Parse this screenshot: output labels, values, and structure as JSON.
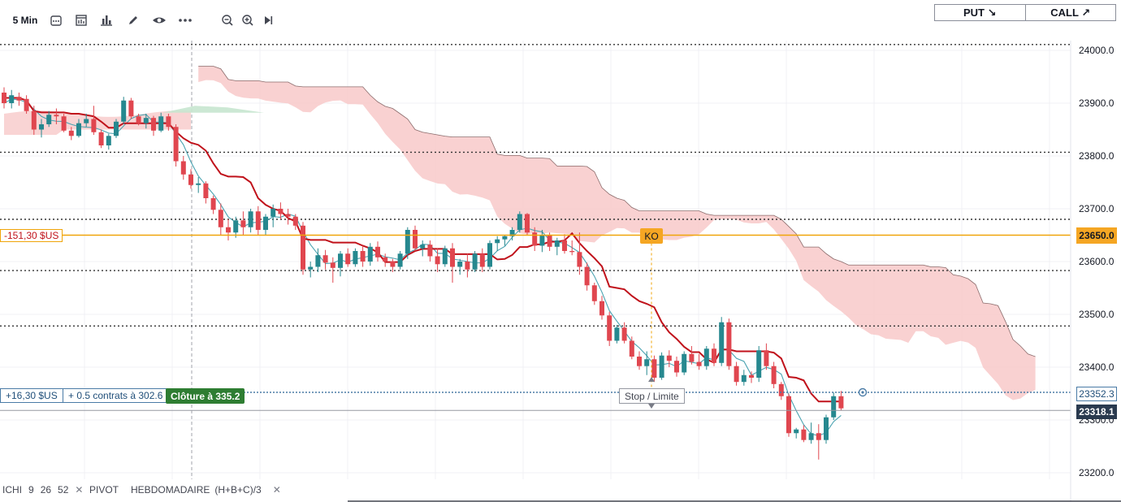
{
  "toolbar": {
    "interval": "5 Min",
    "icons": [
      "candle-type-icon",
      "indicators-icon",
      "bar-chart-icon",
      "draw-pencil-icon",
      "eye-icon",
      "more-icon",
      "zoom-out-icon",
      "zoom-in-icon",
      "play-forward-icon"
    ],
    "put_label": "PUT ↘",
    "call_label": "CALL ↗"
  },
  "position": {
    "pnl_label": "+16,30 $US",
    "contracts_label": "+ 0.5 contrats à 302.6",
    "close_label": "Clôture à 335.2",
    "stop_label": "Stop / Limite"
  },
  "ko": {
    "pnl_label": "-151,30 $US",
    "badge": "KO",
    "price_label": "23650.0"
  },
  "price_tags": {
    "position_price": "23352.3",
    "current_price": "23318.1"
  },
  "legend": {
    "ichi": {
      "name": "ICHI",
      "p1": "9",
      "p2": "26",
      "p3": "52"
    },
    "pivot": {
      "name": "PIVOT",
      "p1": "HEBDOMADAIRE",
      "p2": "(H+B+C)/3"
    }
  },
  "colors": {
    "up": "#26888f",
    "down": "#e0464f",
    "kijun": "#c0121b",
    "tenkan": "#4aa3b1",
    "cloud_bear": "#f8c9c9",
    "cloud_bull": "#c6e6cf",
    "ko_line": "#f0a50a",
    "pivot_line": "#333333"
  },
  "chart_data": {
    "type": "candlestick",
    "y_axis": {
      "min": 23200,
      "max": 24000,
      "ticks": [
        24000,
        23900,
        23800,
        23700,
        23600,
        23500,
        23400,
        23300,
        23200
      ],
      "tick_labels": [
        "24000.0",
        "23900.0",
        "23800.0",
        "23700.0",
        "23600.0",
        "23500.0",
        "23400.0",
        "23300.0",
        "23200.0"
      ]
    },
    "pivot_levels": [
      24011,
      23807,
      23680,
      23583,
      23478
    ],
    "ko_level": 23650,
    "position_level": 23352.3,
    "current_price": 23318.1,
    "candles": [
      [
        23920,
        23930,
        23890,
        23900
      ],
      [
        23900,
        23925,
        23890,
        23915
      ],
      [
        23912,
        23920,
        23895,
        23905
      ],
      [
        23908,
        23915,
        23880,
        23885
      ],
      [
        23885,
        23895,
        23840,
        23850
      ],
      [
        23850,
        23870,
        23835,
        23860
      ],
      [
        23860,
        23885,
        23855,
        23878
      ],
      [
        23878,
        23890,
        23860,
        23875
      ],
      [
        23875,
        23880,
        23845,
        23848
      ],
      [
        23848,
        23855,
        23830,
        23838
      ],
      [
        23838,
        23870,
        23835,
        23862
      ],
      [
        23862,
        23880,
        23855,
        23870
      ],
      [
        23870,
        23895,
        23840,
        23845
      ],
      [
        23845,
        23850,
        23815,
        23820
      ],
      [
        23820,
        23842,
        23812,
        23838
      ],
      [
        23838,
        23870,
        23834,
        23865
      ],
      [
        23865,
        23912,
        23860,
        23905
      ],
      [
        23905,
        23910,
        23870,
        23875
      ],
      [
        23875,
        23880,
        23858,
        23862
      ],
      [
        23862,
        23880,
        23852,
        23872
      ],
      [
        23872,
        23876,
        23838,
        23848
      ],
      [
        23848,
        23882,
        23845,
        23875
      ],
      [
        23875,
        23880,
        23848,
        23855
      ],
      [
        23855,
        23860,
        23780,
        23790
      ],
      [
        23790,
        23800,
        23755,
        23765
      ],
      [
        23765,
        23775,
        23738,
        23745
      ],
      [
        23745,
        23760,
        23730,
        23748
      ],
      [
        23748,
        23752,
        23710,
        23720
      ],
      [
        23720,
        23725,
        23690,
        23698
      ],
      [
        23698,
        23710,
        23650,
        23665
      ],
      [
        23665,
        23680,
        23640,
        23655
      ],
      [
        23655,
        23685,
        23645,
        23678
      ],
      [
        23678,
        23695,
        23650,
        23665
      ],
      [
        23665,
        23700,
        23655,
        23695
      ],
      [
        23695,
        23705,
        23650,
        23660
      ],
      [
        23660,
        23690,
        23650,
        23685
      ],
      [
        23685,
        23708,
        23665,
        23700
      ],
      [
        23700,
        23712,
        23680,
        23690
      ],
      [
        23690,
        23700,
        23670,
        23685
      ],
      [
        23685,
        23690,
        23660,
        23668
      ],
      [
        23668,
        23675,
        23575,
        23585
      ],
      [
        23585,
        23600,
        23570,
        23590
      ],
      [
        23590,
        23625,
        23580,
        23612
      ],
      [
        23612,
        23622,
        23585,
        23598
      ],
      [
        23598,
        23608,
        23560,
        23588
      ],
      [
        23588,
        23620,
        23572,
        23615
      ],
      [
        23615,
        23625,
        23590,
        23595
      ],
      [
        23595,
        23625,
        23590,
        23620
      ],
      [
        23620,
        23630,
        23590,
        23600
      ],
      [
        23600,
        23635,
        23592,
        23628
      ],
      [
        23628,
        23638,
        23600,
        23608
      ],
      [
        23608,
        23615,
        23590,
        23600
      ],
      [
        23600,
        23605,
        23580,
        23590
      ],
      [
        23590,
        23620,
        23585,
        23615
      ],
      [
        23615,
        23665,
        23605,
        23660
      ],
      [
        23660,
        23668,
        23620,
        23625
      ],
      [
        23625,
        23640,
        23610,
        23632
      ],
      [
        23632,
        23640,
        23600,
        23610
      ],
      [
        23610,
        23625,
        23580,
        23595
      ],
      [
        23595,
        23630,
        23590,
        23625
      ],
      [
        23625,
        23635,
        23560,
        23590
      ],
      [
        23590,
        23605,
        23575,
        23600
      ],
      [
        23600,
        23615,
        23570,
        23585
      ],
      [
        23585,
        23620,
        23580,
        23615
      ],
      [
        23615,
        23625,
        23580,
        23590
      ],
      [
        23590,
        23640,
        23585,
        23635
      ],
      [
        23635,
        23648,
        23620,
        23642
      ],
      [
        23642,
        23650,
        23630,
        23648
      ],
      [
        23648,
        23665,
        23640,
        23660
      ],
      [
        23660,
        23695,
        23655,
        23690
      ],
      [
        23690,
        23692,
        23650,
        23655
      ],
      [
        23655,
        23665,
        23620,
        23630
      ],
      [
        23630,
        23660,
        23618,
        23650
      ],
      [
        23650,
        23655,
        23620,
        23628
      ],
      [
        23628,
        23645,
        23612,
        23640
      ],
      [
        23640,
        23652,
        23615,
        23620
      ],
      [
        23620,
        23640,
        23612,
        23618
      ],
      [
        23618,
        23655,
        23575,
        23590
      ],
      [
        23590,
        23598,
        23545,
        23555
      ],
      [
        23555,
        23560,
        23518,
        23525
      ],
      [
        23525,
        23535,
        23490,
        23498
      ],
      [
        23498,
        23505,
        23440,
        23450
      ],
      [
        23450,
        23480,
        23445,
        23475
      ],
      [
        23475,
        23485,
        23445,
        23450
      ],
      [
        23450,
        23458,
        23415,
        23420
      ],
      [
        23420,
        23430,
        23395,
        23402
      ],
      [
        23402,
        23430,
        23385,
        23415
      ],
      [
        23415,
        23422,
        23372,
        23380
      ],
      [
        23380,
        23428,
        23376,
        23422
      ],
      [
        23422,
        23432,
        23400,
        23412
      ],
      [
        23412,
        23420,
        23382,
        23390
      ],
      [
        23390,
        23430,
        23385,
        23425
      ],
      [
        23425,
        23440,
        23405,
        23410
      ],
      [
        23410,
        23425,
        23395,
        23402
      ],
      [
        23402,
        23440,
        23395,
        23435
      ],
      [
        23435,
        23445,
        23402,
        23408
      ],
      [
        23408,
        23495,
        23402,
        23485
      ],
      [
        23485,
        23492,
        23395,
        23402
      ],
      [
        23402,
        23410,
        23365,
        23372
      ],
      [
        23372,
        23395,
        23365,
        23385
      ],
      [
        23385,
        23392,
        23370,
        23380
      ],
      [
        23380,
        23440,
        23372,
        23432
      ],
      [
        23432,
        23445,
        23395,
        23402
      ],
      [
        23402,
        23410,
        23360,
        23368
      ],
      [
        23368,
        23372,
        23338,
        23345
      ],
      [
        23345,
        23350,
        23268,
        23275
      ],
      [
        23275,
        23285,
        23265,
        23282
      ],
      [
        23282,
        23290,
        23258,
        23262
      ],
      [
        23262,
        23295,
        23255,
        23275
      ],
      [
        23275,
        23292,
        23225,
        23262
      ],
      [
        23262,
        23310,
        23255,
        23305
      ],
      [
        23305,
        23352,
        23300,
        23345
      ],
      [
        23345,
        23355,
        23318,
        23322
      ]
    ]
  }
}
